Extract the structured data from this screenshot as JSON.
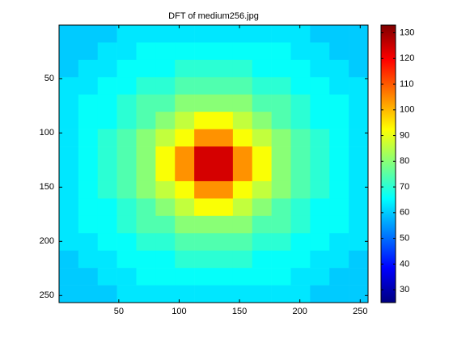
{
  "chart_data": {
    "type": "heatmap",
    "title": "DFT of medium256.jpg",
    "xlim": [
      0.5,
      256.5
    ],
    "ylim": [
      0.5,
      256.5
    ],
    "y_reversed": true,
    "xticks": [
      50,
      100,
      150,
      200,
      250
    ],
    "yticks": [
      50,
      100,
      150,
      200,
      250
    ],
    "colormap": "jet",
    "clim": [
      25,
      133
    ],
    "colorbar_ticks": [
      30,
      40,
      50,
      60,
      70,
      80,
      90,
      100,
      110,
      120,
      130
    ],
    "z": [
      [
        60,
        60,
        60,
        63,
        63,
        63,
        63,
        63,
        63,
        63,
        63,
        63,
        63,
        60,
        60,
        60
      ],
      [
        60,
        60,
        63,
        63,
        66,
        66,
        66,
        66,
        66,
        66,
        66,
        66,
        63,
        63,
        60,
        60
      ],
      [
        60,
        63,
        63,
        66,
        66,
        66,
        70,
        70,
        70,
        70,
        66,
        66,
        66,
        63,
        63,
        60
      ],
      [
        63,
        63,
        66,
        66,
        70,
        70,
        74,
        74,
        74,
        74,
        70,
        70,
        66,
        66,
        63,
        63
      ],
      [
        63,
        66,
        66,
        70,
        74,
        74,
        80,
        80,
        80,
        80,
        74,
        74,
        70,
        66,
        66,
        63
      ],
      [
        63,
        66,
        66,
        70,
        74,
        80,
        86,
        92,
        92,
        86,
        80,
        74,
        70,
        66,
        66,
        63
      ],
      [
        63,
        66,
        70,
        74,
        80,
        86,
        92,
        104,
        104,
        92,
        86,
        80,
        74,
        70,
        66,
        63
      ],
      [
        63,
        66,
        70,
        74,
        80,
        92,
        104,
        124,
        124,
        104,
        92,
        80,
        74,
        70,
        66,
        63
      ],
      [
        63,
        66,
        70,
        74,
        80,
        92,
        104,
        124,
        124,
        104,
        92,
        80,
        74,
        70,
        66,
        63
      ],
      [
        63,
        66,
        70,
        74,
        80,
        86,
        92,
        104,
        104,
        92,
        86,
        80,
        74,
        70,
        66,
        63
      ],
      [
        63,
        66,
        66,
        70,
        74,
        80,
        86,
        92,
        92,
        86,
        80,
        74,
        70,
        66,
        66,
        63
      ],
      [
        63,
        66,
        66,
        70,
        74,
        74,
        80,
        80,
        80,
        80,
        74,
        74,
        70,
        66,
        66,
        63
      ],
      [
        63,
        63,
        66,
        66,
        70,
        70,
        74,
        74,
        74,
        74,
        70,
        70,
        66,
        66,
        63,
        63
      ],
      [
        60,
        63,
        63,
        66,
        66,
        66,
        70,
        70,
        70,
        70,
        66,
        66,
        66,
        63,
        63,
        60
      ],
      [
        60,
        60,
        63,
        63,
        66,
        66,
        66,
        66,
        66,
        66,
        66,
        66,
        63,
        63,
        60,
        60
      ],
      [
        60,
        60,
        60,
        63,
        63,
        63,
        63,
        63,
        63,
        63,
        63,
        63,
        63,
        60,
        60,
        60
      ]
    ]
  }
}
